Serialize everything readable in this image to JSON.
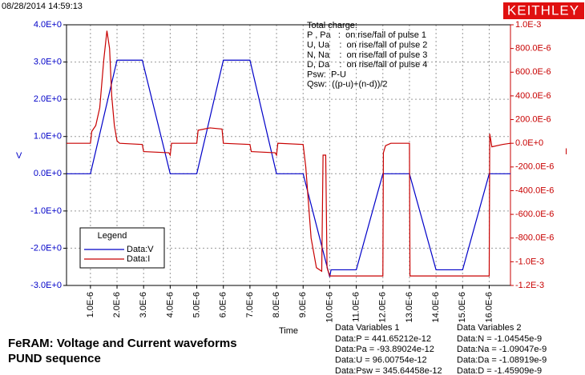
{
  "timestamp": "08/28/2014 14:59:13",
  "logo": "KEITHLEY",
  "annotation": [
    "Total charge:",
    "P , Pa   :  on rise/fall of pulse 1",
    "U, Ua    :  on rise/fall of pulse 2",
    "N, Na    :  on rise/fall of pulse 3",
    "D, Da    :  on rise/fall of pulse 4",
    "Psw:  P-U",
    "Qsw:  ((p-u)+(n-d))/2"
  ],
  "title_lines": [
    "FeRAM: Voltage and Current waveforms",
    "PUND sequence"
  ],
  "data_variables": [
    {
      "title": "Data Variables 1",
      "lines": [
        "Data:P = 441.65212e-12",
        "Data:Pa = -93.89024e-12",
        "Data:U = 96.00754e-12",
        "Data:Psw = 345.64458e-12"
      ]
    },
    {
      "title": "Data Variables 2",
      "lines": [
        "Data:N = -1.04545e-9",
        "Data:Na = -1.09047e-9",
        "Data:Da = -1.08919e-9",
        "Data:D = -1.45909e-9"
      ]
    }
  ],
  "chart_data": {
    "type": "line",
    "xlabel": "Time",
    "ylabel": "V",
    "y2label": "I",
    "legend_title": "Legend",
    "legend": "lower left",
    "grid": true,
    "xlim": [
      1e-07,
      1.68e-05
    ],
    "xticks": [
      {
        "value": 1e-06,
        "label": "1.0E-6"
      },
      {
        "value": 2e-06,
        "label": "2.0E-6"
      },
      {
        "value": 3e-06,
        "label": "3.0E-6"
      },
      {
        "value": 4e-06,
        "label": "4.0E-6"
      },
      {
        "value": 5e-06,
        "label": "5.0E-6"
      },
      {
        "value": 6e-06,
        "label": "6.0E-6"
      },
      {
        "value": 7e-06,
        "label": "7.0E-6"
      },
      {
        "value": 8e-06,
        "label": "8.0E-6"
      },
      {
        "value": 9e-06,
        "label": "9.0E-6"
      },
      {
        "value": 1e-05,
        "label": "10.0E-6"
      },
      {
        "value": 1.1e-05,
        "label": "11.0E-6"
      },
      {
        "value": 1.2e-05,
        "label": "12.0E-6"
      },
      {
        "value": 1.3e-05,
        "label": "13.0E-6"
      },
      {
        "value": 1.4e-05,
        "label": "14.0E-6"
      },
      {
        "value": 1.5e-05,
        "label": "15.0E-6"
      },
      {
        "value": 1.6e-05,
        "label": "16.0E-6"
      }
    ],
    "ylim": [
      -3,
      4
    ],
    "yticks": [
      {
        "value": 4,
        "label": "4.0E+0"
      },
      {
        "value": 3,
        "label": "3.0E+0"
      },
      {
        "value": 2,
        "label": "2.0E+0"
      },
      {
        "value": 1,
        "label": "1.0E+0"
      },
      {
        "value": 0,
        "label": "0.0E+0"
      },
      {
        "value": -1,
        "label": "-1.0E+0"
      },
      {
        "value": -2,
        "label": "-2.0E+0"
      },
      {
        "value": -3,
        "label": "-3.0E+0"
      }
    ],
    "y2lim": [
      -0.0012,
      0.001
    ],
    "y2ticks": [
      {
        "value": 0.001,
        "label": "1.0E-3"
      },
      {
        "value": 0.0008,
        "label": "800.0E-6"
      },
      {
        "value": 0.0006,
        "label": "600.0E-6"
      },
      {
        "value": 0.0004,
        "label": "400.0E-6"
      },
      {
        "value": 0.0002,
        "label": "200.0E-6"
      },
      {
        "value": 0,
        "label": "0.0E+0"
      },
      {
        "value": -0.0002,
        "label": "-200.0E-6"
      },
      {
        "value": -0.0004,
        "label": "-400.0E-6"
      },
      {
        "value": -0.0006,
        "label": "-600.0E-6"
      },
      {
        "value": -0.0008,
        "label": "-800.0E-6"
      },
      {
        "value": -0.001,
        "label": "-1.0E-3"
      },
      {
        "value": -0.0012,
        "label": "-1.2E-3"
      }
    ],
    "series": [
      {
        "name": "Data:V",
        "color": "#0000c8",
        "axis": "y",
        "x": [
          1e-07,
          1e-06,
          2e-06,
          2.95e-06,
          4e-06,
          5e-06,
          6e-06,
          7e-06,
          8e-06,
          9e-06,
          1e-05,
          1.005e-05,
          1.1e-05,
          1.2e-05,
          1.3e-05,
          1.4e-05,
          1.5e-05,
          1.6e-05,
          1.68e-05
        ],
        "values": [
          0,
          0,
          3.05,
          3.05,
          0,
          0,
          3.05,
          3.05,
          0,
          0,
          -2.77,
          -2.58,
          -2.58,
          0,
          0,
          -2.58,
          -2.58,
          0,
          0
        ]
      },
      {
        "name": "Data:I",
        "color": "#c80000",
        "axis": "y2",
        "x": [
          1e-07,
          1e-06,
          1.05e-06,
          1.2e-06,
          1.35e-06,
          1.5e-06,
          1.62e-06,
          1.72e-06,
          1.8e-06,
          1.9e-06,
          2e-06,
          2.1e-06,
          2.95e-06,
          3e-06,
          3.95e-06,
          4e-06,
          4.05e-06,
          5e-06,
          5.05e-06,
          5.5e-06,
          5.95e-06,
          6e-06,
          7e-06,
          7.05e-06,
          7.95e-06,
          8e-06,
          8.05e-06,
          9e-06,
          9.1e-06,
          9.3e-06,
          9.5e-06,
          9.7e-06,
          9.75e-06,
          9.85e-06,
          9.9e-06,
          1e-05,
          1.2e-05,
          1.202e-05,
          1.21e-05,
          1.23e-05,
          1.3e-05,
          1.302e-05,
          1.6e-05,
          1.602e-05,
          1.61e-05,
          1.65e-05,
          1.68e-05
        ],
        "values": [
          0,
          0,
          0.0001,
          0.00015,
          0.0003,
          0.0007,
          0.00095,
          0.0008,
          0.0004,
          0.00015,
          2e-05,
          0,
          -1e-05,
          -7e-05,
          -8e-05,
          -0.0001,
          0,
          0,
          0.00011,
          0.00013,
          0.00012,
          0,
          -1e-05,
          -7e-05,
          -8e-05,
          -0.0001,
          0,
          -1e-05,
          -0.0002,
          -0.0008,
          -0.00105,
          -0.00108,
          -0.0001,
          -0.0001,
          -0.00105,
          -0.00112,
          -0.00112,
          -8e-05,
          -2e-05,
          0,
          0,
          -0.00112,
          -0.00112,
          8e-05,
          -3e-05,
          -1e-05,
          0
        ]
      }
    ]
  }
}
